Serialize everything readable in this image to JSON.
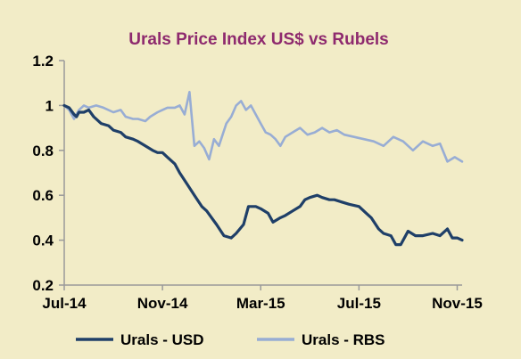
{
  "chart_data": {
    "type": "line",
    "title": "Urals Price Index US$ vs Rubels",
    "xlabel": "",
    "ylabel": "",
    "x_tick_labels": [
      "Jul-14",
      "Nov-14",
      "Mar-15",
      "Jul-15",
      "Nov-15"
    ],
    "x_tick_months": [
      0,
      4,
      8,
      12,
      16
    ],
    "xlim": [
      0,
      16.2
    ],
    "y_tick_labels": [
      "0.2",
      "0.4",
      "0.6",
      "0.8",
      "1",
      "1.2"
    ],
    "y_tick_values": [
      0.2,
      0.4,
      0.6,
      0.8,
      1.0,
      1.2
    ],
    "ylim": [
      0.2,
      1.2
    ],
    "grid": false,
    "legend_position": "bottom",
    "colors": {
      "background": "#f2ecc7",
      "title": "#8e2a6e",
      "axis": "#9a9a9a",
      "usd": "#1f3f68",
      "rbs": "#98add4"
    },
    "series": [
      {
        "name": "Urals - USD",
        "x": [
          0,
          0.2,
          0.4,
          0.5,
          0.6,
          0.8,
          1.0,
          1.2,
          1.5,
          1.8,
          2.0,
          2.3,
          2.5,
          2.8,
          3.0,
          3.3,
          3.6,
          3.8,
          4.0,
          4.2,
          4.5,
          4.7,
          5.0,
          5.3,
          5.6,
          5.8,
          6.0,
          6.2,
          6.5,
          6.8,
          7.0,
          7.3,
          7.5,
          7.8,
          8.0,
          8.3,
          8.5,
          8.8,
          9.0,
          9.3,
          9.6,
          9.8,
          10.0,
          10.3,
          10.5,
          10.8,
          11.0,
          11.3,
          11.6,
          12.0,
          12.3,
          12.5,
          12.8,
          13.0,
          13.3,
          13.5,
          13.7,
          14.0,
          14.3,
          14.6,
          15.0,
          15.3,
          15.6,
          15.8,
          16.0,
          16.2
        ],
        "values": [
          1.0,
          0.99,
          0.96,
          0.95,
          0.97,
          0.97,
          0.98,
          0.95,
          0.92,
          0.91,
          0.89,
          0.88,
          0.86,
          0.85,
          0.84,
          0.82,
          0.8,
          0.79,
          0.79,
          0.77,
          0.74,
          0.7,
          0.65,
          0.6,
          0.55,
          0.53,
          0.5,
          0.47,
          0.42,
          0.41,
          0.43,
          0.47,
          0.55,
          0.55,
          0.54,
          0.52,
          0.48,
          0.5,
          0.51,
          0.53,
          0.55,
          0.58,
          0.59,
          0.6,
          0.59,
          0.58,
          0.58,
          0.57,
          0.56,
          0.55,
          0.52,
          0.5,
          0.45,
          0.43,
          0.42,
          0.38,
          0.38,
          0.44,
          0.42,
          0.42,
          0.43,
          0.42,
          0.45,
          0.41,
          0.41,
          0.4
        ]
      },
      {
        "name": "Urals - RBS",
        "x": [
          0,
          0.2,
          0.4,
          0.6,
          0.8,
          1.0,
          1.3,
          1.6,
          2.0,
          2.3,
          2.5,
          2.8,
          3.0,
          3.3,
          3.5,
          3.8,
          4.0,
          4.2,
          4.5,
          4.7,
          4.9,
          5.1,
          5.3,
          5.5,
          5.7,
          5.9,
          6.1,
          6.3,
          6.6,
          6.8,
          7.0,
          7.2,
          7.4,
          7.6,
          7.8,
          8.0,
          8.2,
          8.4,
          8.6,
          8.8,
          9.0,
          9.3,
          9.6,
          9.9,
          10.2,
          10.5,
          10.8,
          11.1,
          11.4,
          11.8,
          12.2,
          12.6,
          13.0,
          13.4,
          13.8,
          14.2,
          14.6,
          15.0,
          15.3,
          15.6,
          15.9,
          16.2
        ],
        "values": [
          1.0,
          0.98,
          0.94,
          0.98,
          1.0,
          0.99,
          1.0,
          0.99,
          0.97,
          0.98,
          0.95,
          0.94,
          0.94,
          0.93,
          0.95,
          0.97,
          0.98,
          0.99,
          0.99,
          1.0,
          0.96,
          1.06,
          0.82,
          0.84,
          0.81,
          0.76,
          0.85,
          0.82,
          0.92,
          0.95,
          1.0,
          1.02,
          0.98,
          1.0,
          0.96,
          0.92,
          0.88,
          0.87,
          0.85,
          0.82,
          0.86,
          0.88,
          0.9,
          0.87,
          0.88,
          0.9,
          0.88,
          0.89,
          0.87,
          0.86,
          0.85,
          0.84,
          0.82,
          0.86,
          0.84,
          0.8,
          0.84,
          0.82,
          0.83,
          0.75,
          0.77,
          0.75
        ]
      }
    ]
  }
}
